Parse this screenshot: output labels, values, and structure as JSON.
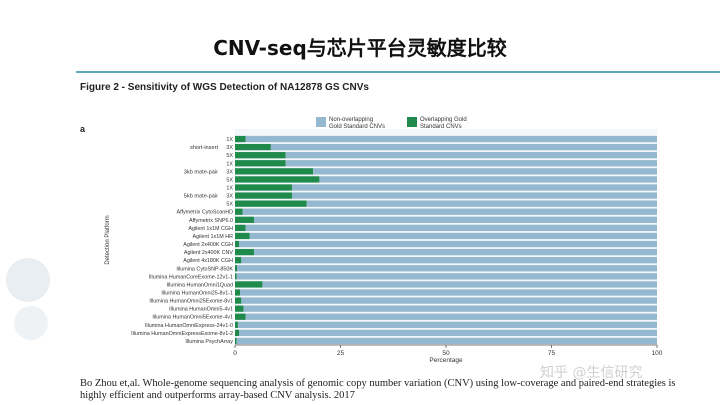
{
  "slide": {
    "title": "CNV-seq与芯片平台灵敏度比较",
    "figure_title": "Figure 2 - Sensitivity of WGS Detection of NA12878 GS CNVs",
    "panel_label": "a",
    "citation": "Bo Zhou et,al. Whole-genome sequencing analysis of genomic copy number variation (CNV) using low-coverage and paired-end strategies is highly efficient and outperforms array-based CNV analysis. 2017",
    "watermark": "知乎 @生信研究"
  },
  "chart_data": {
    "type": "bar",
    "orientation": "horizontal",
    "stacked": true,
    "title": "",
    "xlabel": "Percentage",
    "ylabel": "Detection Platform",
    "xlim": [
      0,
      100
    ],
    "xticks": [
      0,
      25,
      50,
      75,
      100
    ],
    "legend_position": "top",
    "colors": {
      "non_overlapping": "#93b8cf",
      "overlapping": "#1f8a4c"
    },
    "groups": [
      {
        "label": "short-insert",
        "start": 0,
        "count": 3
      },
      {
        "label": "3kb mate-pair",
        "start": 3,
        "count": 3
      },
      {
        "label": "5kb mate-pair",
        "start": 6,
        "count": 3
      }
    ],
    "categories": [
      "1X",
      "3X",
      "5X",
      "1X",
      "3X",
      "5X",
      "1X",
      "3X",
      "5X",
      "Affymetrix CytoScanHD",
      "Affymetrix SNP6.0",
      "Agilent 1x1M CGH",
      "Agilent 1x1M HR",
      "Agilent 2x400K CGH",
      "Agilent 2x400K CNV",
      "Agilent 4x180K CGH",
      "Illumina CytoSNP-850K",
      "Illumina HumanCoreExome-12v1-1",
      "Illumina HumanOmni1Quad",
      "Illumina HumanOmni25-8v1-1",
      "Illumina HumanOmni25Exome-8v1",
      "Illumina HumanOmni5-4v1",
      "Illumina HumanOmni5Exome-4v1",
      "Illumina HumanOmniExpress-24v1-0",
      "Illumina HumanOmniExpressExome-8v1-2",
      "Illumina PsychArray"
    ],
    "series": [
      {
        "name": "Overlapping Gold Standard CNVs",
        "values": [
          2.5,
          8.5,
          12.0,
          12.0,
          18.5,
          20.0,
          13.5,
          13.5,
          17.0,
          1.8,
          4.5,
          2.5,
          3.5,
          1.0,
          4.5,
          1.5,
          0.5,
          0.4,
          6.5,
          1.2,
          1.5,
          2.0,
          2.5,
          0.7,
          1.0,
          0.4
        ]
      },
      {
        "name": "Non-overlapping Gold Standard CNVs",
        "values": [
          97.5,
          91.5,
          88.0,
          88.0,
          81.5,
          80.0,
          86.5,
          86.5,
          83.0,
          98.2,
          95.5,
          97.5,
          96.5,
          99.0,
          95.5,
          98.5,
          99.5,
          99.6,
          93.5,
          98.8,
          98.5,
          98.0,
          97.5,
          99.3,
          99.0,
          99.6
        ]
      }
    ],
    "legend": [
      {
        "label_line1": "Non-overlapping",
        "label_line2": "Gold Standard CNVs",
        "color": "#93b8cf"
      },
      {
        "label_line1": "Overlapping Gold",
        "label_line2": "Standard CNVs",
        "color": "#1f8a4c"
      }
    ]
  }
}
